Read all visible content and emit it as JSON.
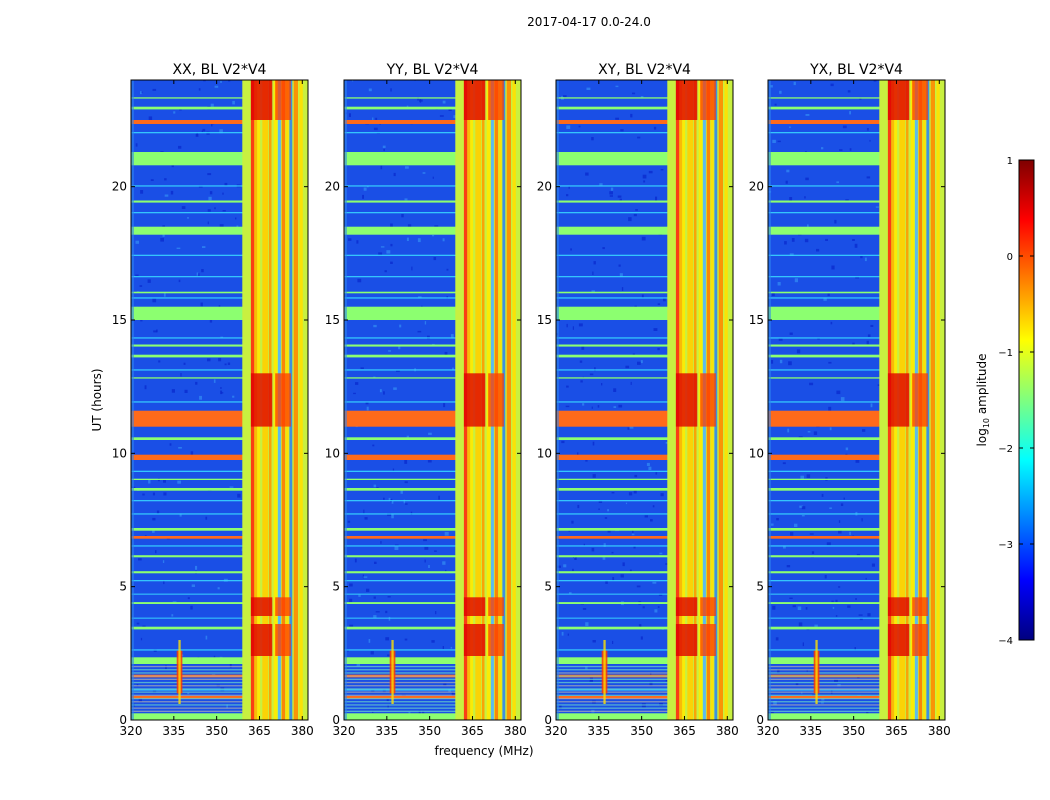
{
  "figure": {
    "suptitle": "2017-04-17 0.0-24.0",
    "xlabel": "frequency (MHz)",
    "ylabel": "UT (hours)"
  },
  "colorbar": {
    "label_prefix": "log",
    "label_sub": "10",
    "label_suffix": " amplitude",
    "range": [
      -4,
      1
    ],
    "ticks": [
      1,
      0,
      -1,
      -2,
      -3,
      -4
    ],
    "tick_labels": [
      "1",
      "0",
      "−1",
      "−2",
      "−3",
      "−4"
    ],
    "colormap": "jet",
    "colors": [
      "#00007f",
      "#0000ff",
      "#007fff",
      "#00ffff",
      "#7fff7f",
      "#ffff00",
      "#ff7f00",
      "#ff0000",
      "#7f0000"
    ]
  },
  "chart_data": [
    {
      "type": "heatmap",
      "title": "XX, BL V2*V4",
      "xlabel": "frequency (MHz)",
      "ylabel": "UT (hours)",
      "xlim": [
        320,
        382
      ],
      "ylim": [
        0,
        24
      ],
      "xticks": [
        320,
        335,
        350,
        365,
        380
      ],
      "yticks": [
        0,
        5,
        10,
        15,
        20
      ],
      "value": "log10 amplitude",
      "crange": [
        -4,
        1
      ]
    },
    {
      "type": "heatmap",
      "title": "YY, BL V2*V4",
      "xlabel": "frequency (MHz)",
      "ylabel": "UT (hours)",
      "xlim": [
        320,
        382
      ],
      "ylim": [
        0,
        24
      ],
      "xticks": [
        320,
        335,
        350,
        365,
        380
      ],
      "yticks": [
        0,
        5,
        10,
        15,
        20
      ],
      "value": "log10 amplitude",
      "crange": [
        -4,
        1
      ]
    },
    {
      "type": "heatmap",
      "title": "XY, BL V2*V4",
      "xlabel": "frequency (MHz)",
      "ylabel": "UT (hours)",
      "xlim": [
        320,
        382
      ],
      "ylim": [
        0,
        24
      ],
      "xticks": [
        320,
        335,
        350,
        365,
        380
      ],
      "yticks": [
        0,
        5,
        10,
        15,
        20
      ],
      "value": "log10 amplitude",
      "crange": [
        -4,
        1
      ]
    },
    {
      "type": "heatmap",
      "title": "YX, BL V2*V4",
      "xlabel": "frequency (MHz)",
      "ylabel": "UT (hours)",
      "xlim": [
        320,
        382
      ],
      "ylim": [
        0,
        24
      ],
      "xticks": [
        320,
        335,
        350,
        365,
        380
      ],
      "yticks": [
        0,
        5,
        10,
        15,
        20
      ],
      "value": "log10 amplitude",
      "crange": [
        -4,
        1
      ]
    }
  ]
}
